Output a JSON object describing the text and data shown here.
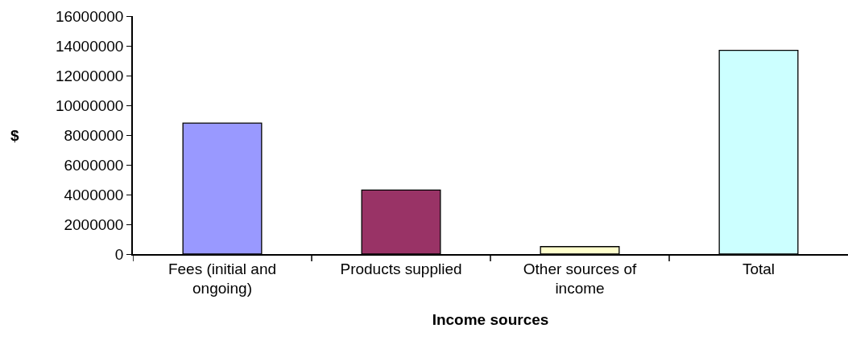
{
  "chart_data": {
    "type": "bar",
    "xlabel": "Income sources",
    "ylabel": "$",
    "categories": [
      "Fees (initial and ongoing)",
      "Products supplied",
      "Other sources of income",
      "Total"
    ],
    "values": [
      8800000,
      4300000,
      500000,
      13700000
    ],
    "colors": [
      "#9999ff",
      "#993366",
      "#ffffcc",
      "#ccffff"
    ],
    "ylim": [
      0,
      16000000
    ],
    "yticks": [
      0,
      2000000,
      4000000,
      6000000,
      8000000,
      10000000,
      12000000,
      14000000,
      16000000
    ]
  }
}
